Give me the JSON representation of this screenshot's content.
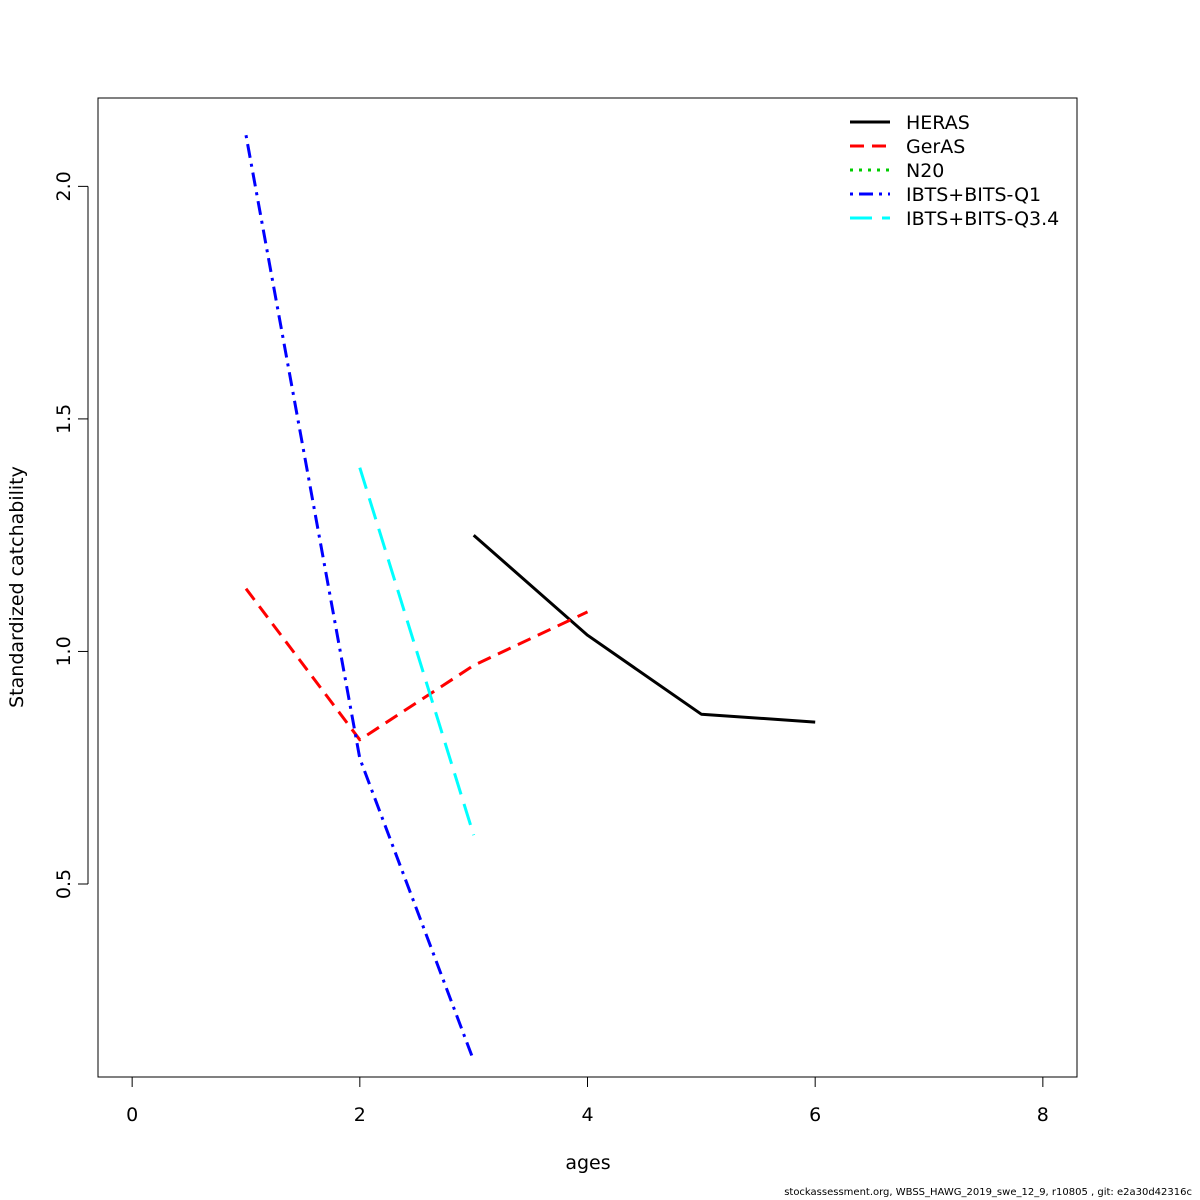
{
  "chart_data": {
    "type": "line",
    "title": "",
    "xlabel": "ages",
    "ylabel": "Standardized catchability",
    "xlim": [
      -0.3,
      8.3
    ],
    "ylim": [
      0.085,
      2.19
    ],
    "x_ticks": [
      "0",
      "2",
      "4",
      "6",
      "8"
    ],
    "x_tick_values": [
      0,
      2,
      4,
      6,
      8
    ],
    "y_ticks": [
      "0.5",
      "1.0",
      "1.5",
      "2.0"
    ],
    "y_tick_values": [
      0.5,
      1.0,
      1.5,
      2.0
    ],
    "grid": false,
    "legend_position": "top-right",
    "series": [
      {
        "name": "HERAS",
        "color": "#000000",
        "dash": "solid",
        "x": [
          3,
          4,
          5,
          6
        ],
        "y": [
          1.25,
          1.035,
          0.865,
          0.848
        ]
      },
      {
        "name": "GerAS",
        "color": "#ff0000",
        "dash": "dashed",
        "x": [
          1,
          2,
          3,
          4
        ],
        "y": [
          1.135,
          0.81,
          0.97,
          1.085
        ]
      },
      {
        "name": "N20",
        "color": "#00cd00",
        "dash": "dotted",
        "x": [],
        "y": []
      },
      {
        "name": "IBTS+BITS-Q1",
        "color": "#0000ff",
        "dash": "dotdash",
        "x": [
          1,
          2,
          3
        ],
        "y": [
          2.11,
          0.77,
          0.12
        ]
      },
      {
        "name": "IBTS+BITS-Q3.4",
        "color": "#00ffff",
        "dash": "longdash",
        "x": [
          2,
          3
        ],
        "y": [
          1.395,
          0.605
        ]
      }
    ]
  },
  "footer_text": "stockassessment.org, WBSS_HAWG_2019_swe_12_9, r10805 , git: e2a30d42316c"
}
